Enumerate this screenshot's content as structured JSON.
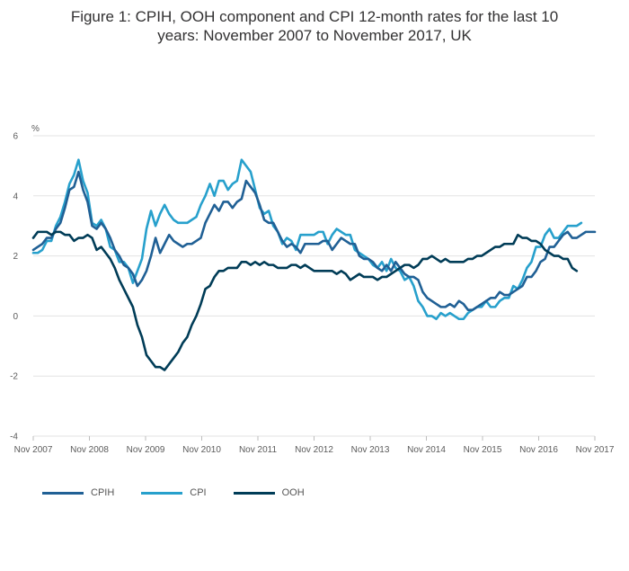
{
  "title_line1": "Figure 1: CPIH, OOH component and CPI 12-month rates for the last 10",
  "title_line2": "years: November 2007 to November 2017, UK",
  "chart_data": {
    "type": "line",
    "ylabel": "%",
    "ylim": [
      -4,
      6
    ],
    "yticks": [
      -4,
      -2,
      0,
      2,
      4,
      6
    ],
    "x_tick_labels": [
      "Nov 2007",
      "Nov 2008",
      "Nov 2009",
      "Nov 2010",
      "Nov 2011",
      "Nov 2012",
      "Nov 2013",
      "Nov 2014",
      "Nov 2015",
      "Nov 2016",
      "Nov 2017"
    ],
    "x_start": "Nov 2007",
    "x_end": "Nov 2017",
    "grid": "horizontal",
    "legend_position": "bottom-left",
    "series": [
      {
        "name": "CPIH",
        "color": "#206095",
        "values": [
          2.2,
          2.3,
          2.4,
          2.6,
          2.6,
          2.9,
          3.1,
          3.6,
          4.2,
          4.3,
          4.8,
          4.2,
          3.8,
          3.0,
          2.9,
          3.1,
          2.9,
          2.6,
          2.2,
          2.0,
          1.7,
          1.6,
          1.4,
          1.0,
          1.2,
          1.5,
          2.0,
          2.6,
          2.1,
          2.4,
          2.7,
          2.5,
          2.4,
          2.3,
          2.4,
          2.4,
          2.5,
          2.6,
          3.1,
          3.4,
          3.7,
          3.5,
          3.8,
          3.8,
          3.6,
          3.8,
          3.9,
          4.5,
          4.3,
          4.1,
          3.7,
          3.2,
          3.1,
          3.1,
          2.8,
          2.5,
          2.3,
          2.4,
          2.3,
          2.1,
          2.4,
          2.4,
          2.4,
          2.4,
          2.5,
          2.5,
          2.2,
          2.4,
          2.6,
          2.5,
          2.4,
          2.4,
          2.0,
          1.9,
          1.9,
          1.8,
          1.6,
          1.5,
          1.7,
          1.5,
          1.8,
          1.6,
          1.4,
          1.3,
          1.3,
          1.2,
          0.8,
          0.6,
          0.5,
          0.4,
          0.3,
          0.3,
          0.4,
          0.3,
          0.5,
          0.4,
          0.2,
          0.2,
          0.3,
          0.4,
          0.5,
          0.6,
          0.6,
          0.8,
          0.7,
          0.7,
          0.8,
          0.9,
          1.0,
          1.3,
          1.3,
          1.5,
          1.8,
          1.9,
          2.3,
          2.3,
          2.5,
          2.7,
          2.8,
          2.6,
          2.6,
          2.7,
          2.8,
          2.8,
          2.8
        ]
      },
      {
        "name": "CPI",
        "color": "#27a0cc",
        "values": [
          2.1,
          2.1,
          2.2,
          2.5,
          2.5,
          3.0,
          3.3,
          3.8,
          4.4,
          4.7,
          5.2,
          4.5,
          4.1,
          3.1,
          3.0,
          3.2,
          2.9,
          2.3,
          2.2,
          1.8,
          1.8,
          1.6,
          1.1,
          1.5,
          1.9,
          2.9,
          3.5,
          3.0,
          3.4,
          3.7,
          3.4,
          3.2,
          3.1,
          3.1,
          3.1,
          3.2,
          3.3,
          3.7,
          4.0,
          4.4,
          4.0,
          4.5,
          4.5,
          4.2,
          4.4,
          4.5,
          5.2,
          5.0,
          4.8,
          4.2,
          3.6,
          3.4,
          3.5,
          3.0,
          2.8,
          2.4,
          2.6,
          2.5,
          2.2,
          2.7,
          2.7,
          2.7,
          2.7,
          2.8,
          2.8,
          2.4,
          2.7,
          2.9,
          2.8,
          2.7,
          2.7,
          2.2,
          2.1,
          2.0,
          1.9,
          1.7,
          1.6,
          1.8,
          1.5,
          1.9,
          1.6,
          1.5,
          1.2,
          1.3,
          1.0,
          0.5,
          0.3,
          0.0,
          0.0,
          -0.1,
          0.1,
          0.0,
          0.1,
          0.0,
          -0.1,
          -0.1,
          0.1,
          0.2,
          0.3,
          0.3,
          0.5,
          0.3,
          0.3,
          0.5,
          0.6,
          0.6,
          1.0,
          0.9,
          1.2,
          1.6,
          1.8,
          2.3,
          2.3,
          2.7,
          2.9,
          2.6,
          2.6,
          2.8,
          3.0,
          3.0,
          3.0,
          3.1
        ]
      },
      {
        "name": "OOH",
        "color": "#003c57",
        "values": [
          2.6,
          2.8,
          2.8,
          2.8,
          2.7,
          2.8,
          2.8,
          2.7,
          2.7,
          2.5,
          2.6,
          2.6,
          2.7,
          2.6,
          2.2,
          2.3,
          2.1,
          1.9,
          1.6,
          1.2,
          0.9,
          0.6,
          0.3,
          -0.3,
          -0.7,
          -1.3,
          -1.5,
          -1.7,
          -1.7,
          -1.8,
          -1.6,
          -1.4,
          -1.2,
          -0.9,
          -0.7,
          -0.3,
          0.0,
          0.4,
          0.9,
          1.0,
          1.3,
          1.5,
          1.5,
          1.6,
          1.6,
          1.6,
          1.8,
          1.8,
          1.7,
          1.8,
          1.7,
          1.8,
          1.7,
          1.7,
          1.6,
          1.6,
          1.6,
          1.7,
          1.7,
          1.6,
          1.7,
          1.6,
          1.5,
          1.5,
          1.5,
          1.5,
          1.5,
          1.4,
          1.5,
          1.4,
          1.2,
          1.3,
          1.4,
          1.3,
          1.3,
          1.3,
          1.2,
          1.3,
          1.3,
          1.4,
          1.5,
          1.6,
          1.7,
          1.7,
          1.6,
          1.7,
          1.9,
          1.9,
          2.0,
          1.9,
          1.8,
          1.9,
          1.8,
          1.8,
          1.8,
          1.8,
          1.9,
          1.9,
          2.0,
          2.0,
          2.1,
          2.2,
          2.3,
          2.3,
          2.4,
          2.4,
          2.4,
          2.7,
          2.6,
          2.6,
          2.5,
          2.5,
          2.4,
          2.2,
          2.1,
          2.0,
          2.0,
          1.9,
          1.9,
          1.6,
          1.5
        ]
      }
    ]
  }
}
